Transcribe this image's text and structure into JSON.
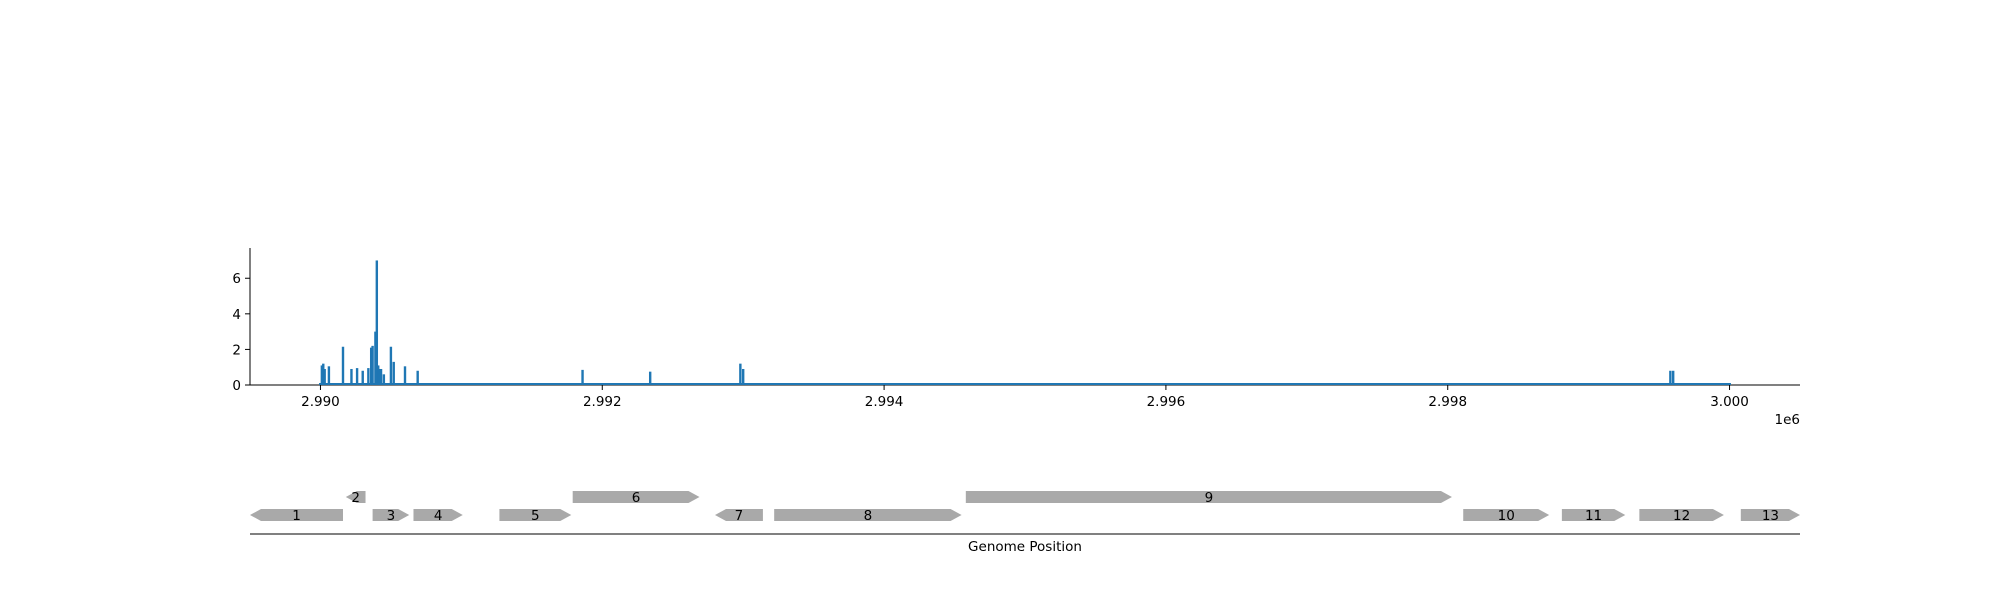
{
  "chart_data": [
    {
      "type": "bar",
      "title": "",
      "xlabel": "",
      "ylabel": "",
      "x_offset_label": "1e6",
      "xlim": [
        2.9895,
        3.0005
      ],
      "ylim": [
        0,
        7.7
      ],
      "x_ticks": [
        2.99,
        2.992,
        2.994,
        2.996,
        2.998,
        3.0
      ],
      "x_tick_labels": [
        "2.990",
        "2.992",
        "2.994",
        "2.996",
        "2.998",
        "3.000"
      ],
      "y_ticks": [
        0,
        2,
        4,
        6
      ],
      "y_tick_labels": [
        "0",
        "2",
        "4",
        "6"
      ],
      "color": "#1f77b4",
      "baseline_extent": [
        2.98999,
        3.00001
      ],
      "series": [
        {
          "x": [
            2.99001,
            2.99002,
            2.99003,
            2.99006,
            2.99016,
            2.99022,
            2.99026,
            2.9903,
            2.99034,
            2.99036,
            2.99037,
            2.99039,
            2.9904,
            2.99041,
            2.99042,
            2.99043,
            2.99045,
            2.9905,
            2.99052,
            2.9906,
            2.99069,
            2.99186,
            2.99234,
            2.99298,
            2.993,
            2.99958,
            2.9996
          ],
          "values": [
            1.1,
            1.2,
            0.9,
            1.05,
            2.15,
            0.9,
            0.95,
            0.8,
            0.95,
            2.1,
            2.2,
            3.0,
            7.0,
            1.1,
            0.9,
            0.9,
            0.6,
            2.15,
            1.3,
            1.05,
            0.8,
            0.85,
            0.75,
            1.2,
            0.9,
            0.8,
            0.8
          ]
        }
      ]
    },
    {
      "type": "gene-track",
      "xlabel": "Genome Position",
      "color": "#a9a9a9",
      "genes": [
        {
          "label": "1",
          "start": 2.9895,
          "end": 2.99016,
          "strand": "-",
          "row": 0
        },
        {
          "label": "2",
          "start": 2.99018,
          "end": 2.99032,
          "strand": "-",
          "row": 1
        },
        {
          "label": "3",
          "start": 2.99037,
          "end": 2.99063,
          "strand": "+",
          "row": 0
        },
        {
          "label": "4",
          "start": 2.99066,
          "end": 2.99101,
          "strand": "+",
          "row": 0
        },
        {
          "label": "5",
          "start": 2.99127,
          "end": 2.99178,
          "strand": "+",
          "row": 0
        },
        {
          "label": "6",
          "start": 2.99179,
          "end": 2.99269,
          "strand": "+",
          "row": 1
        },
        {
          "label": "7",
          "start": 2.9928,
          "end": 2.99314,
          "strand": "-",
          "row": 0
        },
        {
          "label": "8",
          "start": 2.99322,
          "end": 2.99455,
          "strand": "+",
          "row": 0
        },
        {
          "label": "9",
          "start": 2.99458,
          "end": 2.99803,
          "strand": "+",
          "row": 1
        },
        {
          "label": "10",
          "start": 2.99811,
          "end": 2.99872,
          "strand": "+",
          "row": 0
        },
        {
          "label": "11",
          "start": 2.99881,
          "end": 2.99926,
          "strand": "+",
          "row": 0
        },
        {
          "label": "12",
          "start": 2.99936,
          "end": 2.99996,
          "strand": "+",
          "row": 0
        },
        {
          "label": "13",
          "start": 3.00008,
          "end": 3.0005,
          "strand": "+",
          "row": 0
        }
      ]
    }
  ]
}
